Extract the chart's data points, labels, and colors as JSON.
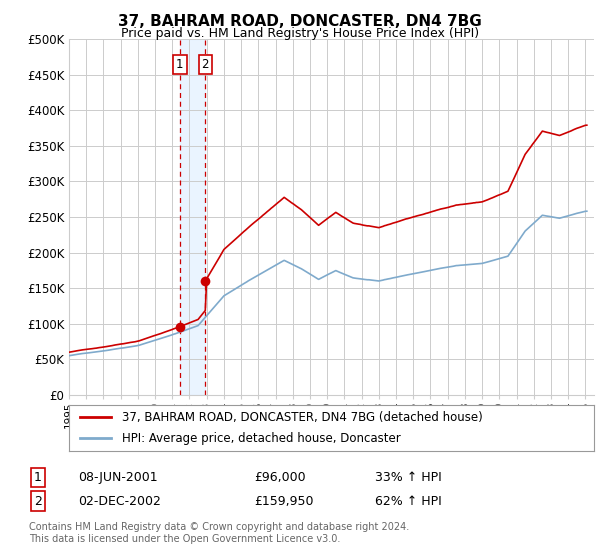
{
  "title": "37, BAHRAM ROAD, DONCASTER, DN4 7BG",
  "subtitle": "Price paid vs. HM Land Registry's House Price Index (HPI)",
  "ylabel_ticks": [
    "£0",
    "£50K",
    "£100K",
    "£150K",
    "£200K",
    "£250K",
    "£300K",
    "£350K",
    "£400K",
    "£450K",
    "£500K"
  ],
  "ytick_values": [
    0,
    50000,
    100000,
    150000,
    200000,
    250000,
    300000,
    350000,
    400000,
    450000,
    500000
  ],
  "ylim": [
    0,
    500000
  ],
  "xlim_start": 1995.0,
  "xlim_end": 2025.5,
  "transaction1": {
    "date_num": 2001.44,
    "price": 96000,
    "label": "1",
    "date_str": "08-JUN-2001",
    "pct": "33%"
  },
  "transaction2": {
    "date_num": 2002.92,
    "price": 159950,
    "label": "2",
    "date_str": "02-DEC-2002",
    "pct": "62%"
  },
  "legend_line1": "37, BAHRAM ROAD, DONCASTER, DN4 7BG (detached house)",
  "legend_line2": "HPI: Average price, detached house, Doncaster",
  "footnote": "Contains HM Land Registry data © Crown copyright and database right 2024.\nThis data is licensed under the Open Government Licence v3.0.",
  "line_color_red": "#cc0000",
  "line_color_blue": "#7faacc",
  "bg_color": "#ffffff",
  "grid_color": "#cccccc",
  "shading_color": "#ddeeff"
}
